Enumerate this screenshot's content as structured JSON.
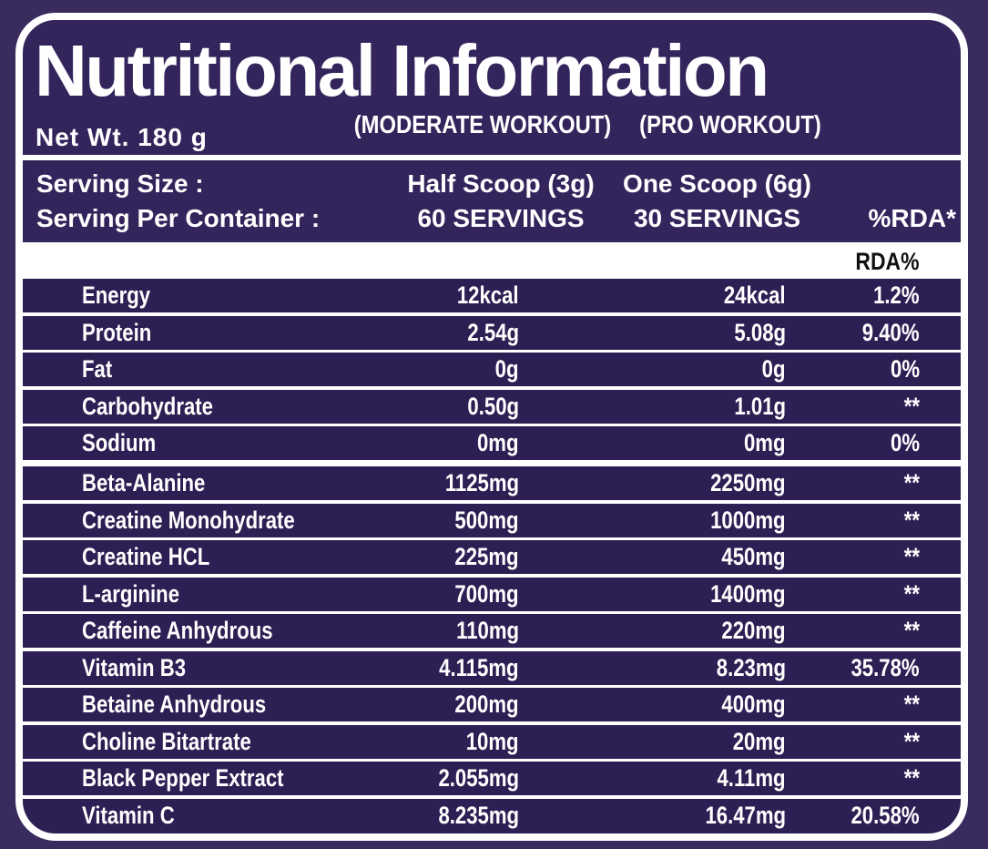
{
  "label": {
    "title": "Nutritional Information",
    "net_weight": "Net Wt. 180 g",
    "col_headers": {
      "moderate": "(MODERATE WORKOUT)",
      "pro": "(PRO WORKOUT)"
    },
    "serving": {
      "size_label": "Serving Size :",
      "per_container_label": "Serving Per Container :",
      "moderate_size": "Half Scoop (3g)",
      "moderate_servings": "60 SERVINGS",
      "pro_size": "One Scoop (6g)",
      "pro_servings": "30 SERVINGS",
      "rda_header": "%RDA*"
    },
    "table": {
      "rda_col_header": "RDA%",
      "rows": [
        {
          "name": "Energy",
          "moderate": "12kcal",
          "pro": "24kcal",
          "rda": "1.2%"
        },
        {
          "name": "Protein",
          "moderate": "2.54g",
          "pro": "5.08g",
          "rda": "9.40%"
        },
        {
          "name": "Fat",
          "moderate": "0g",
          "pro": "0g",
          "rda": "0%"
        },
        {
          "name": "Carbohydrate",
          "moderate": "0.50g",
          "pro": "1.01g",
          "rda": "**"
        },
        {
          "name": "Sodium",
          "moderate": "0mg",
          "pro": "0mg",
          "rda": "0%",
          "section_break_after": true
        },
        {
          "name": "Beta-Alanine",
          "moderate": "1125mg",
          "pro": "2250mg",
          "rda": "**"
        },
        {
          "name": "Creatine Monohydrate",
          "moderate": "500mg",
          "pro": "1000mg",
          "rda": "**"
        },
        {
          "name": "Creatine HCL",
          "moderate": "225mg",
          "pro": "450mg",
          "rda": "**"
        },
        {
          "name": "L-arginine",
          "moderate": "700mg",
          "pro": "1400mg",
          "rda": "**"
        },
        {
          "name": "Caffeine Anhydrous",
          "moderate": "110mg",
          "pro": "220mg",
          "rda": "**"
        },
        {
          "name": "Vitamin B3",
          "moderate": "4.115mg",
          "pro": "8.23mg",
          "rda": "35.78%"
        },
        {
          "name": "Betaine Anhydrous",
          "moderate": "200mg",
          "pro": "400mg",
          "rda": "**"
        },
        {
          "name": "Choline Bitartrate",
          "moderate": "10mg",
          "pro": "20mg",
          "rda": "**"
        },
        {
          "name": "Black Pepper Extract",
          "moderate": "2.055mg",
          "pro": "4.11mg",
          "rda": "**"
        },
        {
          "name": "Vitamin C",
          "moderate": "8.235mg",
          "pro": "16.47mg",
          "rda": "20.58%"
        }
      ]
    },
    "colors": {
      "outer_bg": "#3a2b5e",
      "inner_bg": "#33255c",
      "row_bg": "#2d1f53",
      "text": "#ffffff",
      "rda_header_text": "#111111",
      "border": "#ffffff"
    }
  }
}
